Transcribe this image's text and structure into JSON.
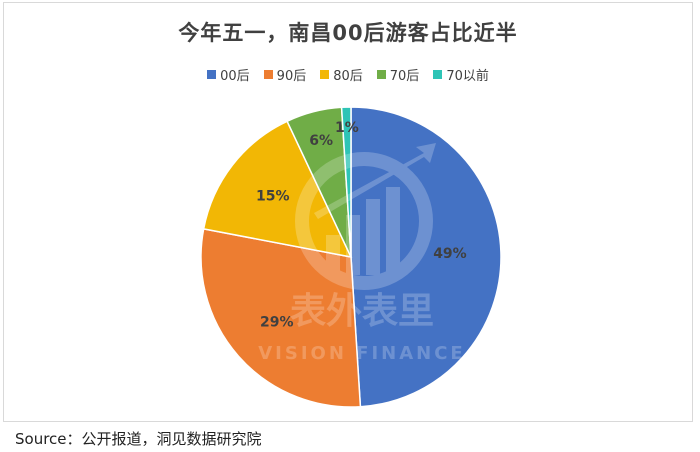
{
  "chart_data": {
    "type": "pie",
    "title": "今年五一，南昌00后游客占比近半",
    "slices": [
      {
        "label": "00后",
        "value": 49,
        "display": "49%",
        "color": "#4472c4"
      },
      {
        "label": "90后",
        "value": 29,
        "display": "29%",
        "color": "#ed7d31"
      },
      {
        "label": "80后",
        "value": 15,
        "display": "15%",
        "color": "#f2b705"
      },
      {
        "label": "70后",
        "value": 6,
        "display": "6%",
        "color": "#70ad47"
      },
      {
        "label": "70以前",
        "value": 1,
        "display": "1%",
        "color": "#2ec4b6"
      }
    ],
    "legend_position": "top"
  },
  "watermark": {
    "main": "表外表里",
    "sub": "VISION FINANCE"
  },
  "source": "Source：公开报道，洞见数据研究院"
}
